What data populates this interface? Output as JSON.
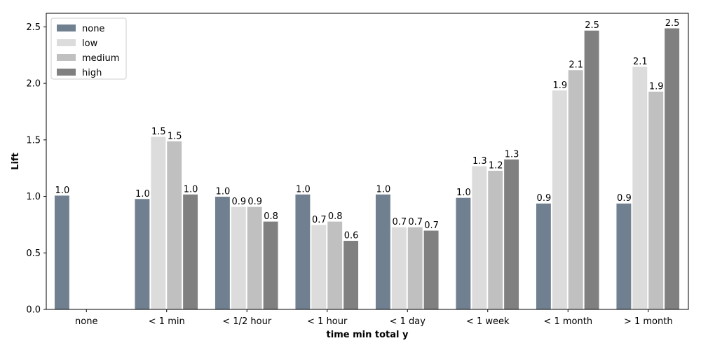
{
  "chart_data": {
    "type": "bar",
    "xlabel": "time min total y",
    "ylabel": "Lift",
    "ylim": [
      0,
      2.62
    ],
    "yticks": [
      "0.0",
      "0.5",
      "1.0",
      "1.5",
      "2.0",
      "2.5"
    ],
    "categories": [
      "none",
      "< 1 min",
      "< 1/2 hour",
      "< 1 hour",
      "< 1 day",
      "< 1 week",
      "< 1 month",
      "> 1 month"
    ],
    "legend_position": "top-left",
    "grid": false,
    "series": [
      {
        "name": "none",
        "color": "#708090",
        "values": [
          1.01,
          0.98,
          1.0,
          1.02,
          1.02,
          0.99,
          0.94,
          0.94
        ],
        "labels": [
          "1.0",
          "1.0",
          "1.0",
          "1.0",
          "1.0",
          "1.0",
          "0.9",
          "0.9"
        ]
      },
      {
        "name": "low",
        "color": "#dcdcdc",
        "values": [
          null,
          1.53,
          0.91,
          0.75,
          0.73,
          1.27,
          1.94,
          2.15
        ],
        "labels": [
          null,
          "1.5",
          "0.9",
          "0.7",
          "0.7",
          "1.3",
          "1.9",
          "2.1"
        ]
      },
      {
        "name": "medium",
        "color": "#c0c0c0",
        "values": [
          null,
          1.49,
          0.91,
          0.78,
          0.73,
          1.23,
          2.12,
          1.93
        ],
        "labels": [
          null,
          "1.5",
          "0.9",
          "0.8",
          "0.7",
          "1.2",
          "2.1",
          "1.9"
        ]
      },
      {
        "name": "high",
        "color": "#808080",
        "values": [
          null,
          1.02,
          0.78,
          0.61,
          0.7,
          1.33,
          2.47,
          2.49
        ],
        "labels": [
          null,
          "1.0",
          "0.8",
          "0.6",
          "0.7",
          "1.3",
          "2.5",
          "2.5"
        ]
      }
    ]
  }
}
